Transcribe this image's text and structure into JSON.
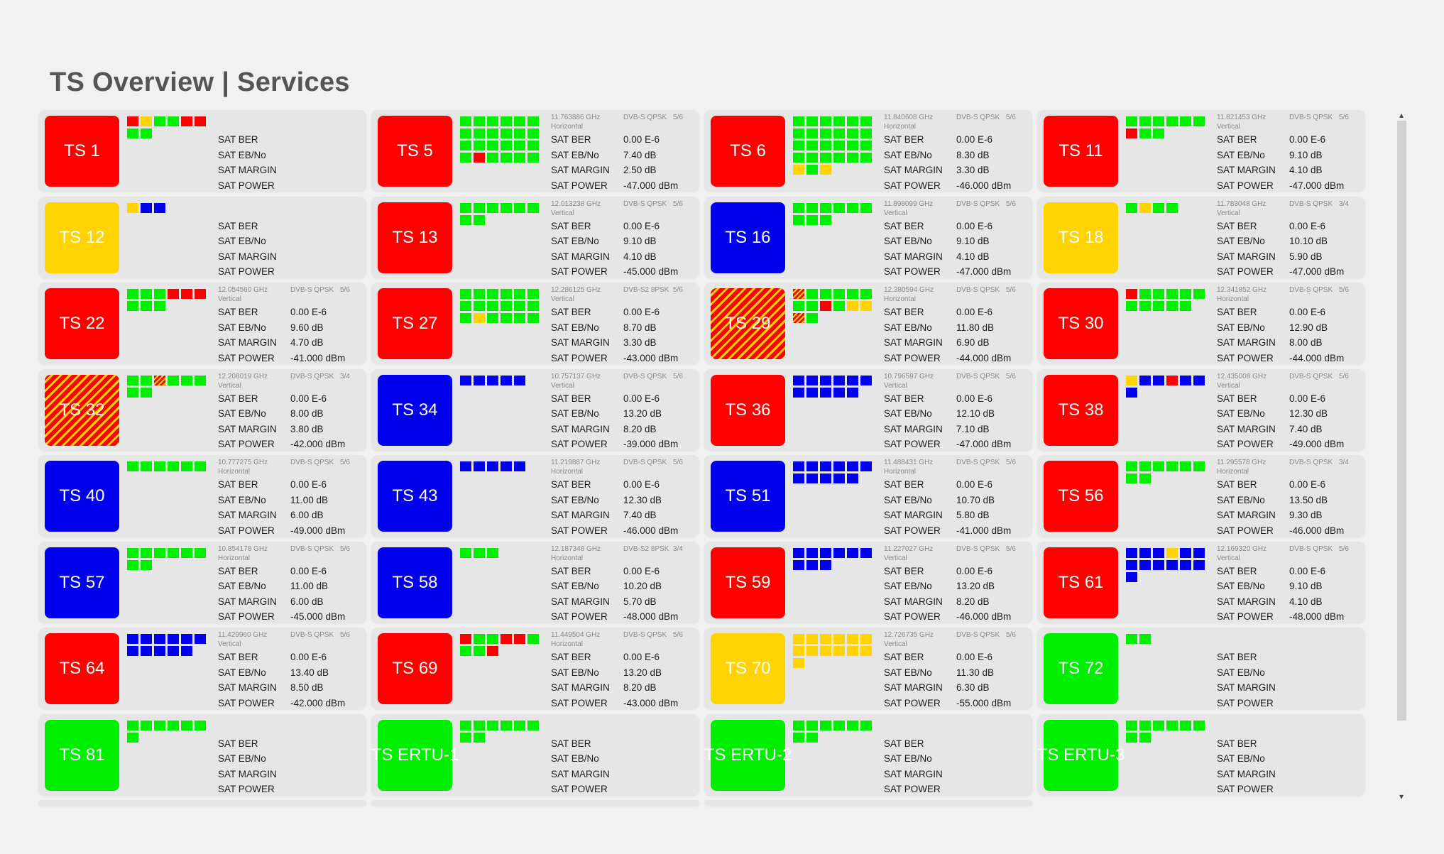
{
  "page": {
    "title": "TS Overview | Services"
  },
  "colors": {
    "red": "#ff0000",
    "yellow": "#ffd400",
    "blue": "#0000ee",
    "green": "#00ee00",
    "card_bg": "#e6e6e6",
    "page_bg": "#f1f1f1"
  },
  "labels": {
    "ber": "SAT BER",
    "ebno": "SAT EB/No",
    "margin": "SAT MARGIN",
    "power": "SAT POWER"
  },
  "scrollbar": {
    "up_icon": "▴",
    "down_icon": "▾"
  },
  "cards": [
    {
      "name": "TS 1",
      "color": "red",
      "services": [
        "red",
        "yellow",
        "green",
        "green",
        "red",
        "red",
        "green",
        "green"
      ],
      "freq": "",
      "pol": "",
      "mod": "",
      "fec": "",
      "ber": "",
      "ebno": "",
      "margin": "",
      "power": ""
    },
    {
      "name": "TS 5",
      "color": "red",
      "services": [
        "green",
        "green",
        "green",
        "green",
        "green",
        "green",
        "green",
        "green",
        "green",
        "green",
        "green",
        "green",
        "green",
        "green",
        "green",
        "green",
        "green",
        "green",
        "green",
        "red",
        "green",
        "green",
        "green",
        "green"
      ],
      "freq": "11.763886 GHz",
      "pol": "Horizontal",
      "mod": "DVB-S QPSK",
      "fec": "5/6",
      "ber": "0.00 E-6",
      "ebno": "7.40 dB",
      "margin": "2.50 dB",
      "power": "-47.000 dBm"
    },
    {
      "name": "TS 6",
      "color": "red",
      "services": [
        "green",
        "green",
        "green",
        "green",
        "green",
        "green",
        "green",
        "green",
        "green",
        "green",
        "green",
        "green",
        "green",
        "green",
        "green",
        "green",
        "green",
        "green",
        "green",
        "green",
        "green",
        "green",
        "green",
        "green",
        "yellow",
        "green",
        "yellow"
      ],
      "freq": "11.840608 GHz",
      "pol": "Horizontal",
      "mod": "DVB-S QPSK",
      "fec": "5/6",
      "ber": "0.00 E-6",
      "ebno": "8.30 dB",
      "margin": "3.30 dB",
      "power": "-46.000 dBm"
    },
    {
      "name": "TS 11",
      "color": "red",
      "services": [
        "green",
        "green",
        "green",
        "green",
        "green",
        "green",
        "red",
        "green",
        "green"
      ],
      "freq": "11.821453 GHz",
      "pol": "Vertical",
      "mod": "DVB-S QPSK",
      "fec": "5/6",
      "ber": "0.00 E-6",
      "ebno": "9.10 dB",
      "margin": "4.10 dB",
      "power": "-47.000 dBm"
    },
    {
      "name": "TS 12",
      "color": "yellow",
      "services": [
        "yellow",
        "blue",
        "blue"
      ],
      "freq": "",
      "pol": "",
      "mod": "",
      "fec": "",
      "ber": "",
      "ebno": "",
      "margin": "",
      "power": ""
    },
    {
      "name": "TS 13",
      "color": "red",
      "services": [
        "green",
        "green",
        "green",
        "green",
        "green",
        "green",
        "green",
        "green"
      ],
      "freq": "12.013238 GHz",
      "pol": "Vertical",
      "mod": "DVB-S QPSK",
      "fec": "5/6",
      "ber": "0.00 E-6",
      "ebno": "9.10 dB",
      "margin": "4.10 dB",
      "power": "-45.000 dBm"
    },
    {
      "name": "TS 16",
      "color": "blue",
      "services": [
        "green",
        "green",
        "green",
        "green",
        "green",
        "green",
        "green",
        "green",
        "green"
      ],
      "freq": "11.898099 GHz",
      "pol": "Vertical",
      "mod": "DVB-S QPSK",
      "fec": "5/6",
      "ber": "0.00 E-6",
      "ebno": "9.10 dB",
      "margin": "4.10 dB",
      "power": "-47.000 dBm"
    },
    {
      "name": "TS 18",
      "color": "yellow",
      "services": [
        "green",
        "yellow",
        "green",
        "green"
      ],
      "freq": "11.783048 GHz",
      "pol": "Vertical",
      "mod": "DVB-S QPSK",
      "fec": "3/4",
      "ber": "0.00 E-6",
      "ebno": "10.10 dB",
      "margin": "5.90 dB",
      "power": "-47.000 dBm"
    },
    {
      "name": "TS 22",
      "color": "red",
      "services": [
        "green",
        "green",
        "green",
        "red",
        "red",
        "red",
        "green",
        "green",
        "green"
      ],
      "freq": "12.054560 GHz",
      "pol": "Vertical",
      "mod": "DVB-S QPSK",
      "fec": "5/6",
      "ber": "0.00 E-6",
      "ebno": "9.60 dB",
      "margin": "4.70 dB",
      "power": "-41.000 dBm"
    },
    {
      "name": "TS 27",
      "color": "red",
      "services": [
        "green",
        "green",
        "green",
        "green",
        "green",
        "green",
        "green",
        "green",
        "green",
        "green",
        "green",
        "green",
        "green",
        "yellow",
        "green",
        "green",
        "green",
        "green"
      ],
      "freq": "12.286125 GHz",
      "pol": "Vertical",
      "mod": "DVB-S2 8PSK",
      "fec": "5/6",
      "ber": "0.00 E-6",
      "ebno": "8.70 dB",
      "margin": "3.30 dB",
      "power": "-43.000 dBm"
    },
    {
      "name": "TS 29",
      "color": "fault",
      "services": [
        "fault",
        "green",
        "green",
        "green",
        "green",
        "green",
        "green",
        "green",
        "red",
        "green",
        "yellow",
        "yellow",
        "fault",
        "green"
      ],
      "freq": "12.380594 GHz",
      "pol": "Horizontal",
      "mod": "DVB-S QPSK",
      "fec": "5/6",
      "ber": "0.00 E-6",
      "ebno": "11.80 dB",
      "margin": "6.90 dB",
      "power": "-44.000 dBm"
    },
    {
      "name": "TS 30",
      "color": "red",
      "services": [
        "red",
        "green",
        "green",
        "green",
        "green",
        "green",
        "green",
        "green",
        "green",
        "green",
        "green"
      ],
      "freq": "12.341852 GHz",
      "pol": "Horizontal",
      "mod": "DVB-S QPSK",
      "fec": "5/6",
      "ber": "0.00 E-6",
      "ebno": "12.90 dB",
      "margin": "8.00 dB",
      "power": "-44.000 dBm"
    },
    {
      "name": "TS 32",
      "color": "fault",
      "services": [
        "green",
        "green",
        "fault",
        "green",
        "green",
        "green",
        "green",
        "green"
      ],
      "freq": "12.208019 GHz",
      "pol": "Vertical",
      "mod": "DVB-S QPSK",
      "fec": "3/4",
      "ber": "0.00 E-6",
      "ebno": "8.00 dB",
      "margin": "3.80 dB",
      "power": "-42.000 dBm"
    },
    {
      "name": "TS 34",
      "color": "blue",
      "services": [
        "blue",
        "blue",
        "blue",
        "blue",
        "blue"
      ],
      "freq": "10.757137 GHz",
      "pol": "Vertical",
      "mod": "DVB-S QPSK",
      "fec": "5/6",
      "ber": "0.00 E-6",
      "ebno": "13.20 dB",
      "margin": "8.20 dB",
      "power": "-39.000 dBm"
    },
    {
      "name": "TS 36",
      "color": "red",
      "services": [
        "blue",
        "blue",
        "blue",
        "blue",
        "blue",
        "blue",
        "blue",
        "blue",
        "blue",
        "blue",
        "blue"
      ],
      "freq": "10.796597 GHz",
      "pol": "Vertical",
      "mod": "DVB-S QPSK",
      "fec": "5/6",
      "ber": "0.00 E-6",
      "ebno": "12.10 dB",
      "margin": "7.10 dB",
      "power": "-47.000 dBm"
    },
    {
      "name": "TS 38",
      "color": "red",
      "services": [
        "yellow",
        "blue",
        "blue",
        "red",
        "blue",
        "blue",
        "blue"
      ],
      "freq": "12.435008 GHz",
      "pol": "Vertical",
      "mod": "DVB-S QPSK",
      "fec": "5/6",
      "ber": "0.00 E-6",
      "ebno": "12.30 dB",
      "margin": "7.40 dB",
      "power": "-49.000 dBm"
    },
    {
      "name": "TS 40",
      "color": "blue",
      "services": [
        "green",
        "green",
        "green",
        "green",
        "green",
        "green"
      ],
      "freq": "10.777275 GHz",
      "pol": "Horizontal",
      "mod": "DVB-S QPSK",
      "fec": "5/6",
      "ber": "0.00 E-6",
      "ebno": "11.00 dB",
      "margin": "6.00 dB",
      "power": "-49.000 dBm"
    },
    {
      "name": "TS 43",
      "color": "blue",
      "services": [
        "blue",
        "blue",
        "blue",
        "blue",
        "blue"
      ],
      "freq": "11.219887 GHz",
      "pol": "Horizontal",
      "mod": "DVB-S QPSK",
      "fec": "5/6",
      "ber": "0.00 E-6",
      "ebno": "12.30 dB",
      "margin": "7.40 dB",
      "power": "-46.000 dBm"
    },
    {
      "name": "TS 51",
      "color": "blue",
      "services": [
        "blue",
        "blue",
        "blue",
        "blue",
        "blue",
        "blue",
        "blue",
        "blue",
        "blue",
        "blue",
        "blue"
      ],
      "freq": "11.488431 GHz",
      "pol": "Horizontal",
      "mod": "DVB-S QPSK",
      "fec": "5/6",
      "ber": "0.00 E-6",
      "ebno": "10.70 dB",
      "margin": "5.80 dB",
      "power": "-41.000 dBm"
    },
    {
      "name": "TS 56",
      "color": "red",
      "services": [
        "green",
        "green",
        "green",
        "green",
        "green",
        "green",
        "green",
        "green"
      ],
      "freq": "11.295578 GHz",
      "pol": "Horizontal",
      "mod": "DVB-S QPSK",
      "fec": "3/4",
      "ber": "0.00 E-6",
      "ebno": "13.50 dB",
      "margin": "9.30 dB",
      "power": "-46.000 dBm"
    },
    {
      "name": "TS 57",
      "color": "blue",
      "services": [
        "green",
        "green",
        "green",
        "green",
        "green",
        "green",
        "green",
        "green"
      ],
      "freq": "10.854178 GHz",
      "pol": "Horizontal",
      "mod": "DVB-S QPSK",
      "fec": "5/6",
      "ber": "0.00 E-6",
      "ebno": "11.00 dB",
      "margin": "6.00 dB",
      "power": "-45.000 dBm"
    },
    {
      "name": "TS 58",
      "color": "blue",
      "services": [
        "green",
        "green",
        "green"
      ],
      "freq": "12.187348 GHz",
      "pol": "Horizontal",
      "mod": "DVB-S2 8PSK",
      "fec": "3/4",
      "ber": "0.00 E-6",
      "ebno": "10.20 dB",
      "margin": "5.70 dB",
      "power": "-48.000 dBm"
    },
    {
      "name": "TS 59",
      "color": "red",
      "services": [
        "blue",
        "blue",
        "blue",
        "blue",
        "blue",
        "blue",
        "blue",
        "blue",
        "blue"
      ],
      "freq": "11.227027 GHz",
      "pol": "Vertical",
      "mod": "DVB-S QPSK",
      "fec": "5/6",
      "ber": "0.00 E-6",
      "ebno": "13.20 dB",
      "margin": "8.20 dB",
      "power": "-46.000 dBm"
    },
    {
      "name": "TS 61",
      "color": "red",
      "services": [
        "blue",
        "blue",
        "blue",
        "yellow",
        "blue",
        "blue",
        "blue",
        "blue",
        "blue",
        "blue",
        "blue",
        "blue",
        "blue"
      ],
      "freq": "12.169320 GHz",
      "pol": "Vertical",
      "mod": "DVB-S QPSK",
      "fec": "5/6",
      "ber": "0.00 E-6",
      "ebno": "9.10 dB",
      "margin": "4.10 dB",
      "power": "-48.000 dBm"
    },
    {
      "name": "TS 64",
      "color": "red",
      "services": [
        "blue",
        "blue",
        "blue",
        "blue",
        "blue",
        "blue",
        "blue",
        "blue",
        "blue",
        "blue",
        "blue"
      ],
      "freq": "11.429960 GHz",
      "pol": "Vertical",
      "mod": "DVB-S QPSK",
      "fec": "5/6",
      "ber": "0.00 E-6",
      "ebno": "13.40 dB",
      "margin": "8.50 dB",
      "power": "-42.000 dBm"
    },
    {
      "name": "TS 69",
      "color": "red",
      "services": [
        "red",
        "green",
        "green",
        "red",
        "red",
        "green",
        "green",
        "green",
        "red"
      ],
      "freq": "11.449504 GHz",
      "pol": "Horizontal",
      "mod": "DVB-S QPSK",
      "fec": "5/6",
      "ber": "0.00 E-6",
      "ebno": "13.20 dB",
      "margin": "8.20 dB",
      "power": "-43.000 dBm"
    },
    {
      "name": "TS 70",
      "color": "yellow",
      "services": [
        "yellow",
        "yellow",
        "yellow",
        "yellow",
        "yellow",
        "yellow",
        "yellow",
        "yellow",
        "yellow",
        "yellow",
        "yellow",
        "yellow",
        "yellow"
      ],
      "freq": "12.726735 GHz",
      "pol": "Vertical",
      "mod": "DVB-S QPSK",
      "fec": "5/6",
      "ber": "0.00 E-6",
      "ebno": "11.30 dB",
      "margin": "6.30 dB",
      "power": "-55.000 dBm"
    },
    {
      "name": "TS 72",
      "color": "green",
      "services": [
        "green",
        "green"
      ],
      "freq": "",
      "pol": "",
      "mod": "",
      "fec": "",
      "ber": "",
      "ebno": "",
      "margin": "",
      "power": ""
    },
    {
      "name": "TS 81",
      "color": "green",
      "services": [
        "green",
        "green",
        "green",
        "green",
        "green",
        "green",
        "green"
      ],
      "freq": "",
      "pol": "",
      "mod": "",
      "fec": "",
      "ber": "",
      "ebno": "",
      "margin": "",
      "power": ""
    },
    {
      "name": "TS ERTU-1",
      "color": "green",
      "services": [
        "green",
        "green",
        "green",
        "green",
        "green",
        "green",
        "green",
        "green"
      ],
      "freq": "",
      "pol": "",
      "mod": "",
      "fec": "",
      "ber": "",
      "ebno": "",
      "margin": "",
      "power": ""
    },
    {
      "name": "TS ERTU-2",
      "color": "green",
      "services": [
        "green",
        "green",
        "green",
        "green",
        "green",
        "green",
        "green",
        "green"
      ],
      "freq": "",
      "pol": "",
      "mod": "",
      "fec": "",
      "ber": "",
      "ebno": "",
      "margin": "",
      "power": ""
    },
    {
      "name": "TS ERTU-3",
      "color": "green",
      "services": [
        "green",
        "green",
        "green",
        "green",
        "green",
        "green",
        "green",
        "green"
      ],
      "freq": "",
      "pol": "",
      "mod": "",
      "fec": "",
      "ber": "",
      "ebno": "",
      "margin": "",
      "power": ""
    }
  ]
}
